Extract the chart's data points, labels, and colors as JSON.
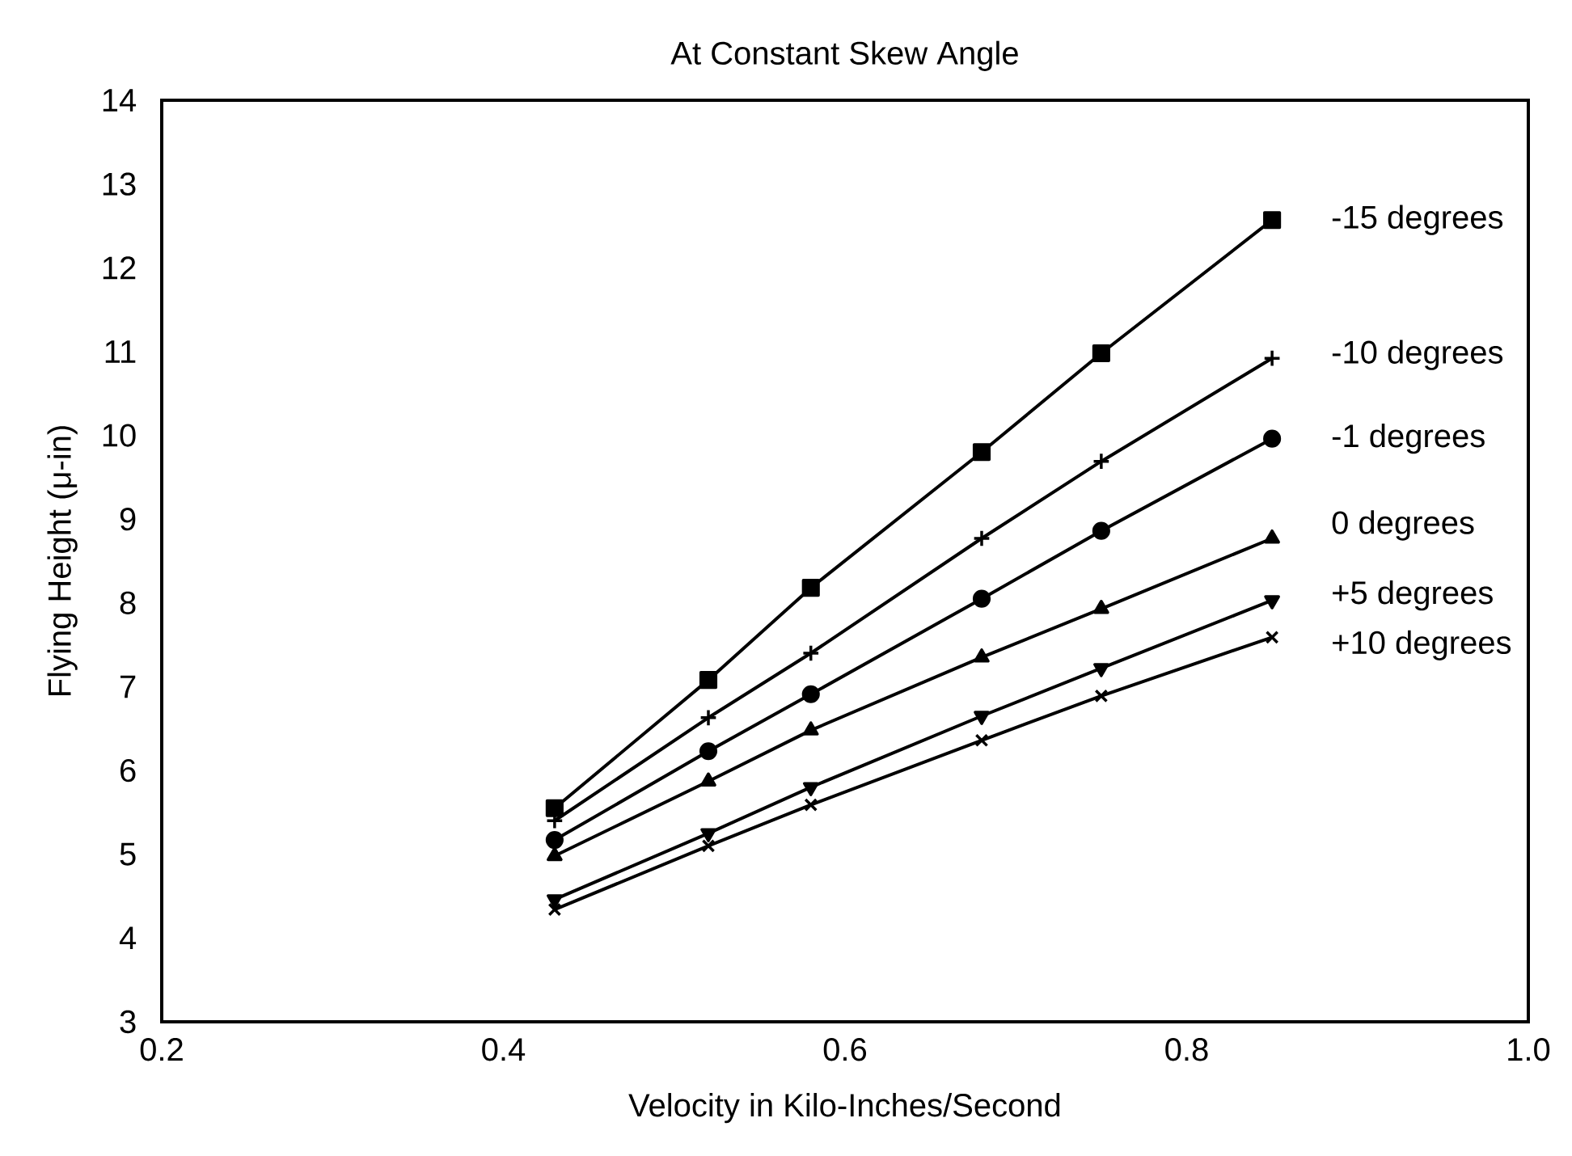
{
  "chart_data": {
    "type": "line",
    "title": "At Constant Skew Angle",
    "xlabel": "Velocity in Kilo-Inches/Second",
    "ylabel": "Flying Height (μ-in)",
    "x": [
      0.43,
      0.52,
      0.58,
      0.68,
      0.75,
      0.85
    ],
    "xlim": [
      0.2,
      1.0
    ],
    "xticks": [
      0.2,
      0.4,
      0.6,
      0.8,
      {
        "value": 1.0,
        "label": "1.0"
      }
    ],
    "ylim": [
      3,
      14
    ],
    "yticks": [
      3,
      4,
      5,
      6,
      7,
      8,
      9,
      10,
      11,
      12,
      13,
      14
    ],
    "grid": false,
    "legend": false,
    "line_style": "solid",
    "series": [
      {
        "name": "-15 degrees",
        "color": "#000000",
        "marker": "square",
        "values": [
          5.55,
          7.08,
          8.18,
          9.8,
          10.98,
          12.57
        ]
      },
      {
        "name": "-10 degrees",
        "color": "#000000",
        "marker": "plus",
        "values": [
          5.4,
          6.63,
          7.4,
          8.77,
          9.69,
          10.92
        ]
      },
      {
        "name": "-1 degrees",
        "color": "#000000",
        "marker": "circle",
        "values": [
          5.17,
          6.23,
          6.91,
          8.05,
          8.86,
          9.96
        ]
      },
      {
        "name": "0 degrees",
        "color": "#000000",
        "marker": "triangle",
        "values": [
          4.98,
          5.87,
          6.48,
          7.35,
          7.93,
          8.77
        ]
      },
      {
        "name": "+5 degrees",
        "color": "#000000",
        "marker": "triangle-down",
        "values": [
          4.46,
          5.25,
          5.8,
          6.65,
          7.22,
          8.03
        ]
      },
      {
        "name": "+10 degrees",
        "color": "#000000",
        "marker": "cross",
        "values": [
          4.34,
          5.1,
          5.59,
          6.36,
          6.89,
          7.59
        ]
      }
    ]
  }
}
